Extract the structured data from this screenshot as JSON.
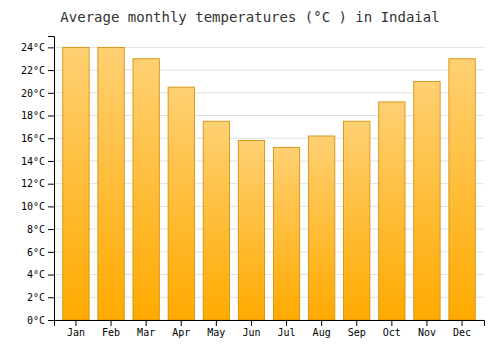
{
  "chart_data": {
    "type": "bar",
    "title": "Average monthly temperatures (°C ) in Indaial",
    "categories": [
      "Jan",
      "Feb",
      "Mar",
      "Apr",
      "May",
      "Jun",
      "Jul",
      "Aug",
      "Sep",
      "Oct",
      "Nov",
      "Dec"
    ],
    "values": [
      24.0,
      24.0,
      23.0,
      20.5,
      17.5,
      15.8,
      15.2,
      16.2,
      17.5,
      19.2,
      21.0,
      23.0
    ],
    "color": "#FFAA00",
    "ylim": [
      0,
      25
    ],
    "yticks": [
      {
        "value": 0,
        "label": "0°C"
      },
      {
        "value": 2,
        "label": "2°C"
      },
      {
        "value": 4,
        "label": "4°C"
      },
      {
        "value": 6,
        "label": "6°C"
      },
      {
        "value": 8,
        "label": "8°C"
      },
      {
        "value": 10,
        "label": "10°C"
      },
      {
        "value": 12,
        "label": "12°C"
      },
      {
        "value": 14,
        "label": "14°C"
      },
      {
        "value": 16,
        "label": "16°C"
      },
      {
        "value": 18,
        "label": "18°C"
      },
      {
        "value": 20,
        "label": "20°C"
      },
      {
        "value": 22,
        "label": "22°C"
      },
      {
        "value": 24,
        "label": "24°C"
      }
    ],
    "grid": true
  }
}
